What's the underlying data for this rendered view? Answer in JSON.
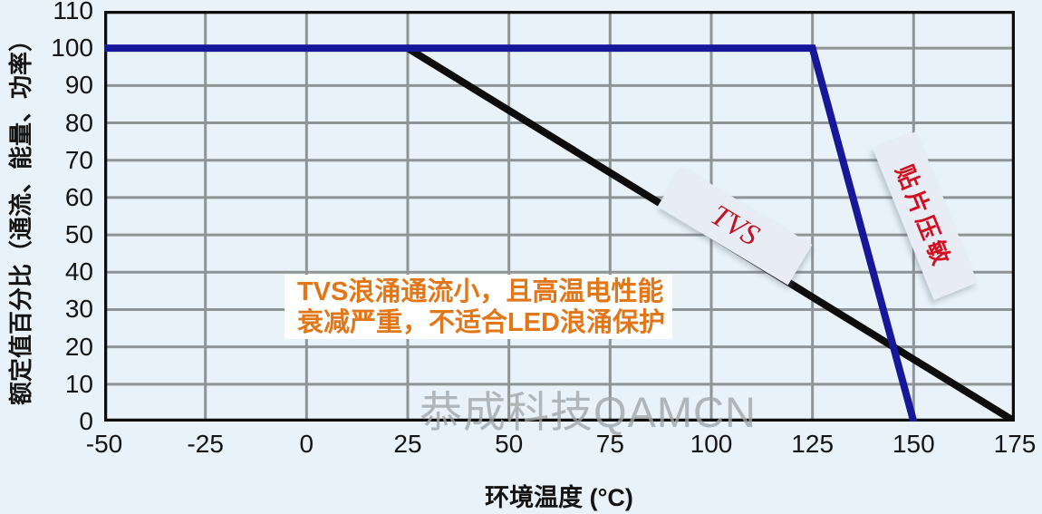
{
  "figure": {
    "watermark": "恭成科技QAMCN",
    "annotation": {
      "line1": "TVS浪涌通流小，且高温电性能",
      "line2": "衰减严重，不适合LED浪涌保护",
      "text_color": "#e2771a",
      "background": "#ffffff"
    },
    "background_color": "#e9f2f8"
  },
  "chart_data": {
    "type": "line",
    "title": "",
    "xlabel": "环境温度 (°C)",
    "ylabel": "额定值百分比（通流、能量、功率）",
    "xlim": [
      -50,
      175
    ],
    "ylim": [
      0,
      110
    ],
    "xticks": [
      -50,
      -25,
      0,
      25,
      50,
      75,
      100,
      125,
      150,
      175
    ],
    "yticks": [
      0,
      10,
      20,
      30,
      40,
      50,
      60,
      70,
      80,
      90,
      100,
      110
    ],
    "grid": true,
    "grid_color": "#8f9496",
    "frame_color": "#0d0d0d",
    "series": [
      {
        "name": "TVS",
        "color": "#0d0d0d",
        "label_color": "#c31223",
        "points": [
          [
            25,
            100
          ],
          [
            175,
            0
          ]
        ]
      },
      {
        "name": "贴片压敏",
        "color": "#17179a",
        "label_color": "#d01020",
        "points": [
          [
            -50,
            100
          ],
          [
            125,
            100
          ],
          [
            150,
            0
          ]
        ]
      }
    ]
  }
}
